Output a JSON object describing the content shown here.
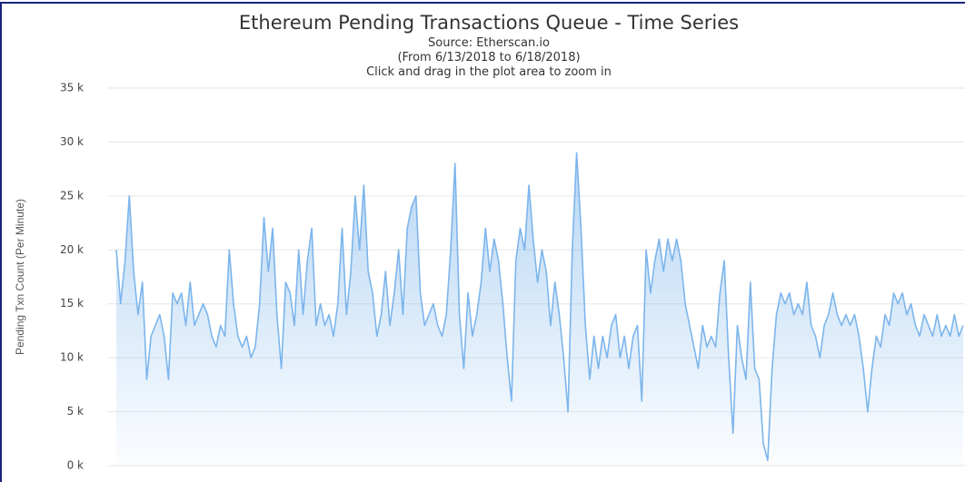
{
  "chart_data": {
    "type": "area",
    "title": "Ethereum Pending Transactions Queue - Time Series",
    "subtitle": [
      "Source: Etherscan.io",
      "(From 6/13/2018 to 6/18/2018)",
      "Click and drag in the plot area to zoom in"
    ],
    "y_label": "Pending Txn Count (Per Minute)",
    "color": "#7cb5ec",
    "grid": true,
    "ylim": [
      0,
      35000
    ],
    "yticks": [
      {
        "value": 0,
        "label": "0 k"
      },
      {
        "value": 5000,
        "label": "5 k"
      },
      {
        "value": 10000,
        "label": "10 k"
      },
      {
        "value": 15000,
        "label": "15 k"
      },
      {
        "value": 20000,
        "label": "20 k"
      },
      {
        "value": 25000,
        "label": "25 k"
      },
      {
        "value": 30000,
        "label": "30 k"
      },
      {
        "value": 35000,
        "label": "35 k"
      }
    ],
    "values": [
      20000,
      15000,
      19000,
      25000,
      18000,
      14000,
      17000,
      8000,
      12000,
      13000,
      14000,
      12000,
      8000,
      16000,
      15000,
      16000,
      13000,
      17000,
      13000,
      14000,
      15000,
      14000,
      12000,
      11000,
      13000,
      12000,
      20000,
      15000,
      12000,
      11000,
      12000,
      10000,
      11000,
      15000,
      23000,
      18000,
      22000,
      14000,
      9000,
      17000,
      16000,
      13000,
      20000,
      14000,
      19000,
      22000,
      13000,
      15000,
      13000,
      14000,
      12000,
      15000,
      22000,
      14000,
      18000,
      25000,
      20000,
      26000,
      18000,
      16000,
      12000,
      14000,
      18000,
      13000,
      16000,
      20000,
      14000,
      22000,
      24000,
      25000,
      16000,
      13000,
      14000,
      15000,
      13000,
      12000,
      14000,
      20000,
      28000,
      14000,
      9000,
      16000,
      12000,
      14000,
      17000,
      22000,
      18000,
      21000,
      19000,
      15000,
      10000,
      6000,
      19000,
      22000,
      20000,
      26000,
      21000,
      17000,
      20000,
      18000,
      13000,
      17000,
      14000,
      10000,
      5000,
      20000,
      29000,
      22000,
      13000,
      8000,
      12000,
      9000,
      12000,
      10000,
      13000,
      14000,
      10000,
      12000,
      9000,
      12000,
      13000,
      6000,
      20000,
      16000,
      19000,
      21000,
      18000,
      21000,
      19000,
      21000,
      19000,
      15000,
      13000,
      11000,
      9000,
      13000,
      11000,
      12000,
      11000,
      16000,
      19000,
      10000,
      3000,
      13000,
      10000,
      8000,
      17000,
      9000,
      8000,
      2000,
      500,
      9000,
      14000,
      16000,
      15000,
      16000,
      14000,
      15000,
      14000,
      17000,
      13000,
      12000,
      10000,
      13000,
      14000,
      16000,
      14000,
      13000,
      14000,
      13000,
      14000,
      12000,
      9000,
      5000,
      9000,
      12000,
      11000,
      14000,
      13000,
      16000,
      15000,
      16000,
      14000,
      15000,
      13000,
      12000,
      14000,
      13000,
      12000,
      14000,
      12000,
      13000,
      12000,
      14000,
      12000,
      13000
    ]
  }
}
